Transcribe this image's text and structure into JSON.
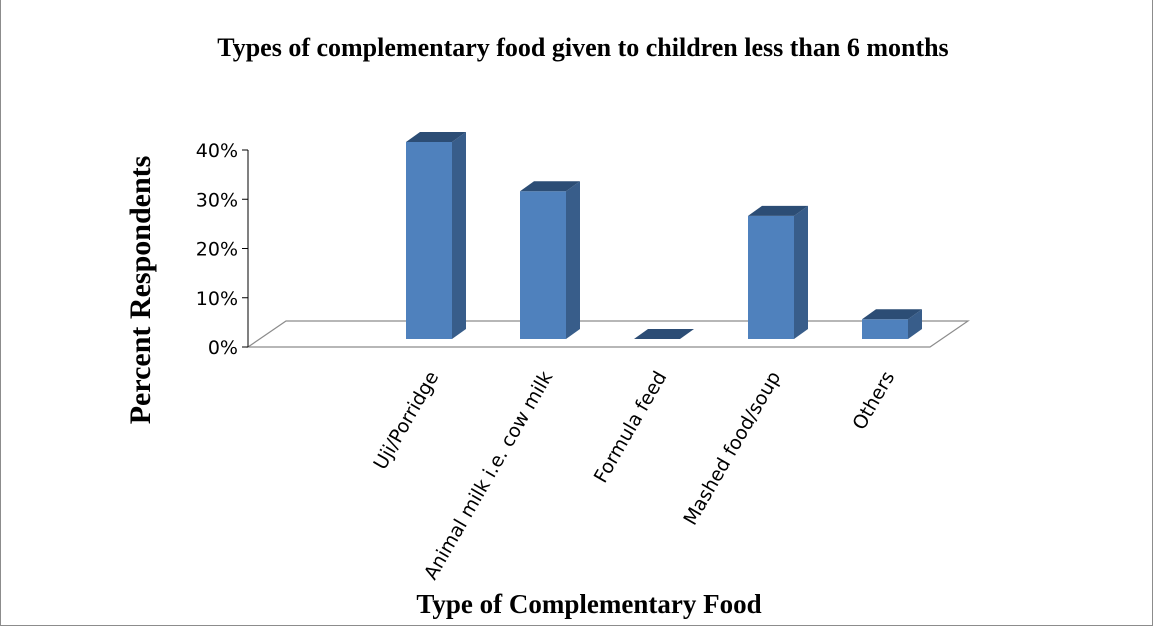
{
  "chart_data": {
    "type": "bar",
    "title": "Types of complementary food given to children less than 6 months",
    "xlabel": "Type of Complementary Food",
    "ylabel": "Percent Respondents",
    "categories": [
      "Uji/Porridge",
      "Animal milk i.e. cow milk",
      "Formula feed",
      "Mashed food/soup",
      "Others"
    ],
    "values": [
      40,
      30,
      0,
      25,
      4
    ],
    "ylim": [
      0,
      40
    ],
    "yticks": [
      "0%",
      "10%",
      "20%",
      "30%",
      "40%"
    ],
    "grid": false,
    "legend": "none",
    "style": "3d-column"
  },
  "colors": {
    "bar_front": "#4f81bd",
    "bar_side": "#385d8a",
    "bar_top": "#2c4d75",
    "floor_stroke": "#8c8c8c"
  }
}
